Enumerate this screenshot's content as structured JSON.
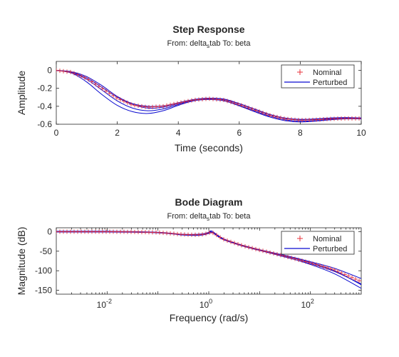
{
  "colors": {
    "nominal": "#e8303a",
    "perturbed": "#0a0ad0",
    "axes": "#262626",
    "background": "#ffffff"
  },
  "chart_data": [
    {
      "type": "line",
      "title": "Step Response",
      "subtitle": {
        "prefix": "From: delta",
        "sub": "s",
        "suffix": "tab  To: beta"
      },
      "xlabel": "Time (seconds)",
      "ylabel": "Amplitude",
      "xlim": [
        0,
        10
      ],
      "ylim": [
        -0.6,
        0.1
      ],
      "xticks": [
        0,
        2,
        4,
        6,
        8,
        10
      ],
      "xtick_labels": [
        "0",
        "2",
        "4",
        "6",
        "8",
        "10"
      ],
      "yticks": [
        0,
        -0.2,
        -0.4,
        -0.6
      ],
      "ytick_labels": [
        "0",
        "-0.2",
        "-0.4",
        "-0.6"
      ],
      "grid": false,
      "legend_position": "top-right",
      "legend": [
        "Nominal",
        "Perturbed"
      ],
      "x": [
        0,
        0.5,
        1,
        1.5,
        2,
        2.5,
        3,
        3.5,
        4,
        4.5,
        5,
        5.5,
        6,
        6.5,
        7,
        7.5,
        8,
        8.5,
        9,
        9.5,
        10
      ],
      "series": [
        {
          "name": "Nominal",
          "marker": "+",
          "values": [
            0,
            -0.02,
            -0.09,
            -0.2,
            -0.31,
            -0.385,
            -0.41,
            -0.4,
            -0.365,
            -0.33,
            -0.315,
            -0.33,
            -0.38,
            -0.44,
            -0.5,
            -0.54,
            -0.555,
            -0.55,
            -0.54,
            -0.535,
            -0.535
          ]
        },
        {
          "role": "Perturbed",
          "values": [
            0,
            -0.025,
            -0.1,
            -0.22,
            -0.34,
            -0.42,
            -0.45,
            -0.43,
            -0.38,
            -0.335,
            -0.32,
            -0.335,
            -0.39,
            -0.45,
            -0.51,
            -0.55,
            -0.565,
            -0.56,
            -0.545,
            -0.535,
            -0.54
          ]
        },
        {
          "role": "Perturbed",
          "values": [
            0,
            -0.03,
            -0.13,
            -0.27,
            -0.39,
            -0.46,
            -0.48,
            -0.45,
            -0.39,
            -0.34,
            -0.325,
            -0.34,
            -0.395,
            -0.46,
            -0.52,
            -0.56,
            -0.575,
            -0.565,
            -0.55,
            -0.54,
            -0.54
          ]
        },
        {
          "role": "Perturbed",
          "values": [
            0,
            -0.015,
            -0.07,
            -0.17,
            -0.29,
            -0.37,
            -0.4,
            -0.395,
            -0.36,
            -0.325,
            -0.31,
            -0.325,
            -0.375,
            -0.435,
            -0.495,
            -0.535,
            -0.55,
            -0.545,
            -0.535,
            -0.53,
            -0.53
          ]
        },
        {
          "role": "Perturbed",
          "values": [
            0,
            -0.02,
            -0.085,
            -0.19,
            -0.3,
            -0.38,
            -0.42,
            -0.41,
            -0.37,
            -0.33,
            -0.31,
            -0.32,
            -0.37,
            -0.43,
            -0.49,
            -0.53,
            -0.545,
            -0.54,
            -0.53,
            -0.525,
            -0.53
          ]
        }
      ]
    },
    {
      "type": "line",
      "title": "Bode Diagram",
      "subtitle": {
        "prefix": "From: delta",
        "sub": "s",
        "suffix": "tab  To: beta"
      },
      "xlabel": "Frequency (rad/s)",
      "ylabel": "Magnitude (dB)",
      "xscale": "log",
      "xlim": [
        0.001,
        1000
      ],
      "ylim": [
        -160,
        10
      ],
      "xticks": [
        0.01,
        1,
        100
      ],
      "xtick_labels": [
        {
          "base": "10",
          "exp": "-2"
        },
        {
          "base": "10",
          "exp": "0"
        },
        {
          "base": "10",
          "exp": "2"
        }
      ],
      "yticks": [
        0,
        -50,
        -100,
        -150
      ],
      "ytick_labels": [
        "0",
        "-50",
        "-100",
        "-150"
      ],
      "grid": false,
      "legend_position": "top-right",
      "legend": [
        "Nominal",
        "Perturbed"
      ],
      "x": [
        0.001,
        0.003,
        0.01,
        0.03,
        0.1,
        0.2,
        0.3,
        0.5,
        0.7,
        0.9,
        1.1,
        1.3,
        1.6,
        2,
        3,
        5,
        10,
        30,
        100,
        300,
        1000
      ],
      "series": [
        {
          "name": "Nominal",
          "marker": "+",
          "values": [
            0,
            0,
            0,
            -0.5,
            -2,
            -5,
            -7,
            -8,
            -7.5,
            -5,
            -1,
            -5,
            -13,
            -20,
            -28,
            -37,
            -47,
            -62,
            -80,
            -98,
            -128
          ]
        },
        {
          "role": "Perturbed",
          "values": [
            0,
            0,
            0,
            -0.5,
            -2.3,
            -5.5,
            -8,
            -9.5,
            -9,
            -6.5,
            -3,
            -4,
            -12,
            -19,
            -27,
            -36,
            -46,
            -60,
            -77,
            -94,
            -120
          ]
        },
        {
          "role": "Perturbed",
          "values": [
            -1,
            -1,
            -1,
            -1.5,
            -3,
            -6,
            -8.5,
            -9.5,
            -8.5,
            -4.5,
            2,
            -3,
            -13,
            -21,
            -29,
            -38,
            -48,
            -64,
            -82,
            -102,
            -134
          ]
        },
        {
          "role": "Perturbed",
          "values": [
            1,
            1,
            1,
            0.5,
            -1.5,
            -4.5,
            -6.5,
            -7,
            -6,
            -3.5,
            0,
            -6,
            -14,
            -21,
            -29,
            -38,
            -48,
            -63,
            -84,
            -108,
            -145
          ]
        },
        {
          "role": "Perturbed",
          "values": [
            0,
            0,
            0,
            -0.5,
            -2,
            -5,
            -7.5,
            -8.5,
            -8,
            -5.5,
            -1.5,
            -5,
            -13,
            -20,
            -28,
            -37,
            -47,
            -61,
            -79,
            -100,
            -136
          ]
        }
      ]
    }
  ]
}
